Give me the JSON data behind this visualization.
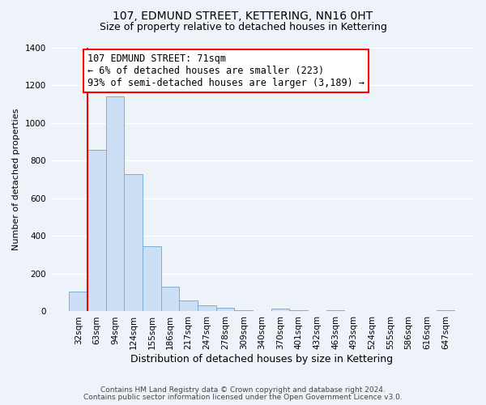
{
  "title": "107, EDMUND STREET, KETTERING, NN16 0HT",
  "subtitle": "Size of property relative to detached houses in Kettering",
  "xlabel": "Distribution of detached houses by size in Kettering",
  "ylabel": "Number of detached properties",
  "bar_labels": [
    "32sqm",
    "63sqm",
    "94sqm",
    "124sqm",
    "155sqm",
    "186sqm",
    "217sqm",
    "247sqm",
    "278sqm",
    "309sqm",
    "340sqm",
    "370sqm",
    "401sqm",
    "432sqm",
    "463sqm",
    "493sqm",
    "524sqm",
    "555sqm",
    "586sqm",
    "616sqm",
    "647sqm"
  ],
  "bar_values": [
    105,
    860,
    1140,
    730,
    345,
    130,
    60,
    30,
    20,
    5,
    0,
    15,
    5,
    0,
    5,
    0,
    3,
    0,
    0,
    0,
    5
  ],
  "bar_color": "#cddff5",
  "bar_edge_color": "#7bafd4",
  "ylim": [
    0,
    1400
  ],
  "yticks": [
    0,
    200,
    400,
    600,
    800,
    1000,
    1200,
    1400
  ],
  "annotation_line1": "107 EDMUND STREET: 71sqm",
  "annotation_line2": "← 6% of detached houses are smaller (223)",
  "annotation_line3": "93% of semi-detached houses are larger (3,189) →",
  "footer_line1": "Contains HM Land Registry data © Crown copyright and database right 2024.",
  "footer_line2": "Contains public sector information licensed under the Open Government Licence v3.0.",
  "background_color": "#eef2f9",
  "plot_background_color": "#eef2f9",
  "grid_color": "#ffffff",
  "title_fontsize": 10,
  "subtitle_fontsize": 9,
  "ylabel_fontsize": 8,
  "xlabel_fontsize": 9,
  "tick_fontsize": 7.5,
  "footer_fontsize": 6.5,
  "ann_fontsize": 8.5
}
